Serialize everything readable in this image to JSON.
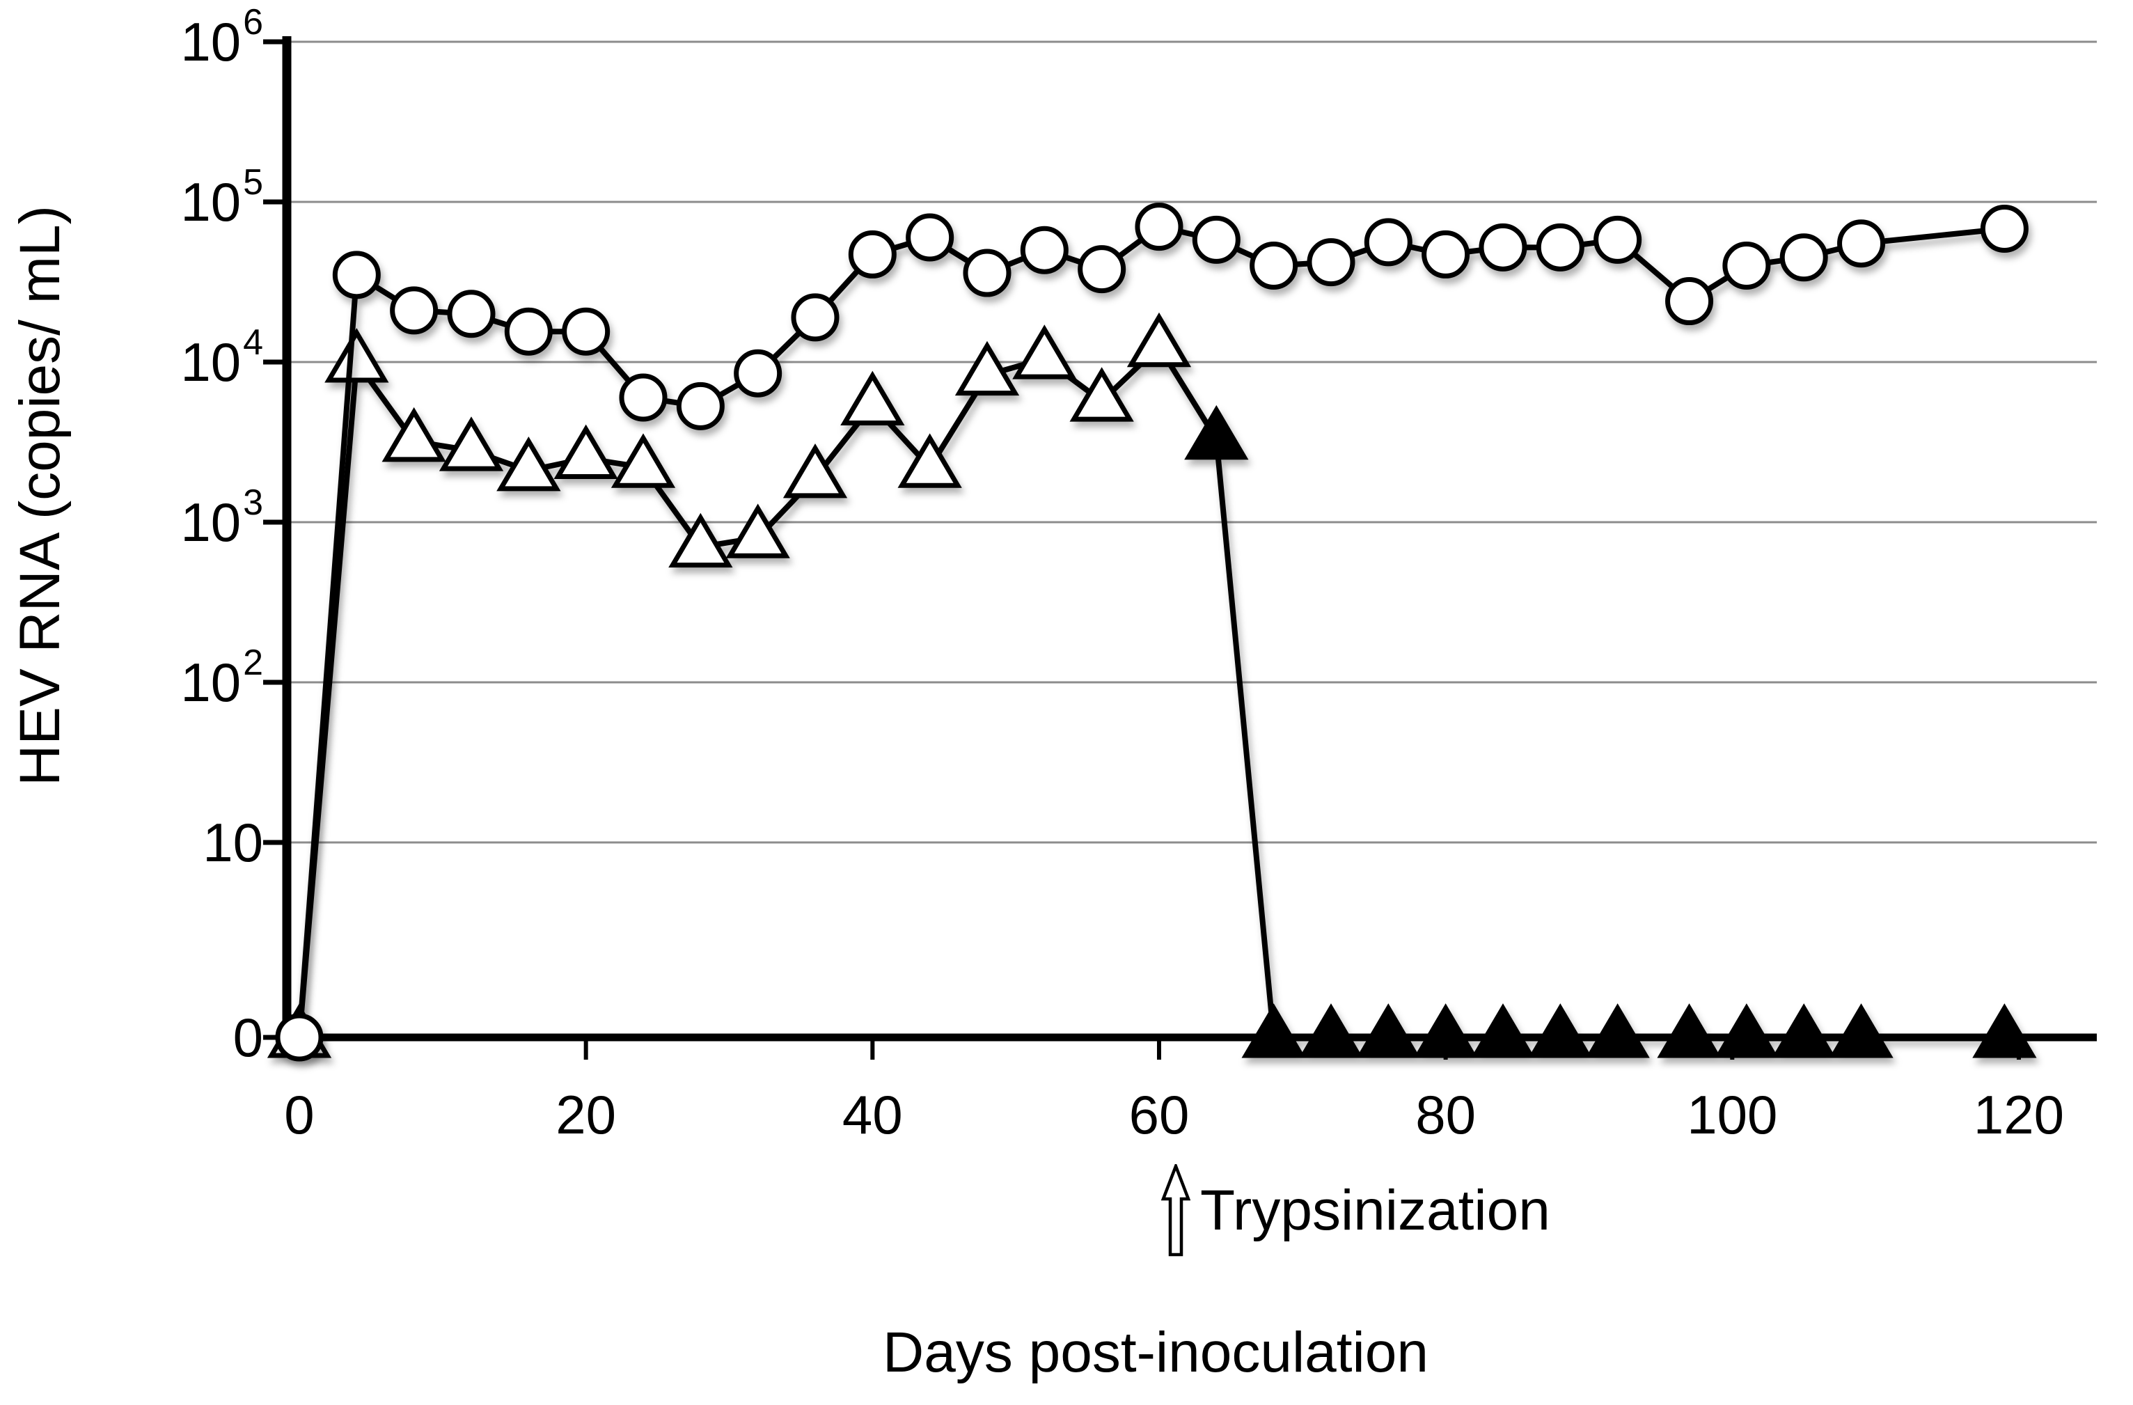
{
  "figure": {
    "y_axis": {
      "label": "HEV RNA (copies/ mL)",
      "tick_labels": [
        "10^6",
        "10^5",
        "10^4",
        "10^3",
        "10^2",
        "10",
        "0"
      ]
    },
    "x_axis": {
      "label": "Days post-inoculation",
      "tick_labels": [
        "0",
        "20",
        "40",
        "60",
        "80",
        "100",
        "120"
      ]
    },
    "annotation": {
      "icon": "up-arrow",
      "label": "Trypsinization"
    }
  },
  "chart_data": {
    "type": "line",
    "title": "",
    "xlabel": "Days post-inoculation",
    "ylabel": "HEV RNA (copies/ mL)",
    "x_ticks": [
      0,
      20,
      40,
      60,
      80,
      100,
      120
    ],
    "x_range": [
      0,
      124
    ],
    "y_axis_type": "log-with-zero",
    "y_ticks": [
      1000000,
      100000,
      10000,
      1000,
      100,
      10,
      0
    ],
    "y_tick_labels": [
      "10^6",
      "10^5",
      "10^4",
      "10^3",
      "10^2",
      "10",
      "0"
    ],
    "ylim": [
      0,
      1000000
    ],
    "grid": true,
    "legend": "none",
    "annotation": {
      "label": "Trypsinization",
      "arrow": "up",
      "day": 62
    },
    "x_days": [
      0,
      4,
      8,
      12,
      16,
      20,
      24,
      28,
      32,
      36,
      40,
      44,
      48,
      52,
      56,
      60,
      64,
      68,
      72,
      76,
      80,
      84,
      88,
      92,
      97,
      101,
      105,
      109,
      119
    ],
    "series": [
      {
        "name": "open-circle-series",
        "marker": "circle",
        "marker_fill": "open",
        "values": [
          0,
          35000,
          21000,
          20000,
          15500,
          15500,
          6000,
          5300,
          8500,
          19000,
          47000,
          60000,
          36000,
          50000,
          38000,
          70000,
          58000,
          40000,
          42000,
          56000,
          47000,
          52000,
          52000,
          58000,
          24000,
          40000,
          45000,
          55000,
          68000
        ]
      },
      {
        "name": "triangle-series",
        "marker": "triangle",
        "marker_fill": "open",
        "marker_filled_from_day": 64,
        "values": [
          0,
          10000,
          3200,
          2800,
          2100,
          2500,
          2200,
          700,
          800,
          1900,
          5400,
          2200,
          8300,
          10500,
          5700,
          12500,
          3300,
          0,
          0,
          0,
          0,
          0,
          0,
          0,
          0,
          0,
          0,
          0,
          0
        ]
      }
    ],
    "colors": {
      "line": "#000000",
      "marker_fill": "#ffffff",
      "grid": "#8c8c8c",
      "background": "#ffffff"
    }
  }
}
